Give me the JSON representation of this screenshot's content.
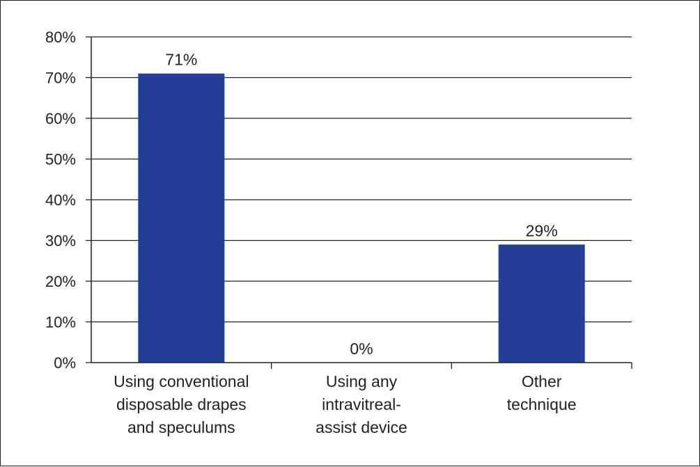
{
  "chart_data": {
    "type": "bar",
    "categories": [
      [
        "Using conventional",
        "disposable drapes",
        "and speculums"
      ],
      [
        "Using any",
        "intravitreal-",
        "assist device"
      ],
      [
        "Other",
        "technique"
      ]
    ],
    "values": [
      71,
      0,
      29
    ],
    "data_labels": [
      "71%",
      "0%",
      "29%"
    ],
    "ylim": [
      0,
      80
    ],
    "yticks": [
      0,
      10,
      20,
      30,
      40,
      50,
      60,
      70,
      80
    ],
    "ytick_labels": [
      "0%",
      "10%",
      "20%",
      "30%",
      "40%",
      "50%",
      "60%",
      "70%",
      "80%"
    ],
    "title": "",
    "xlabel": "",
    "ylabel": "",
    "grid": true,
    "legend": "none",
    "bar_color": "#233f97",
    "grid_color": "#231f20"
  }
}
